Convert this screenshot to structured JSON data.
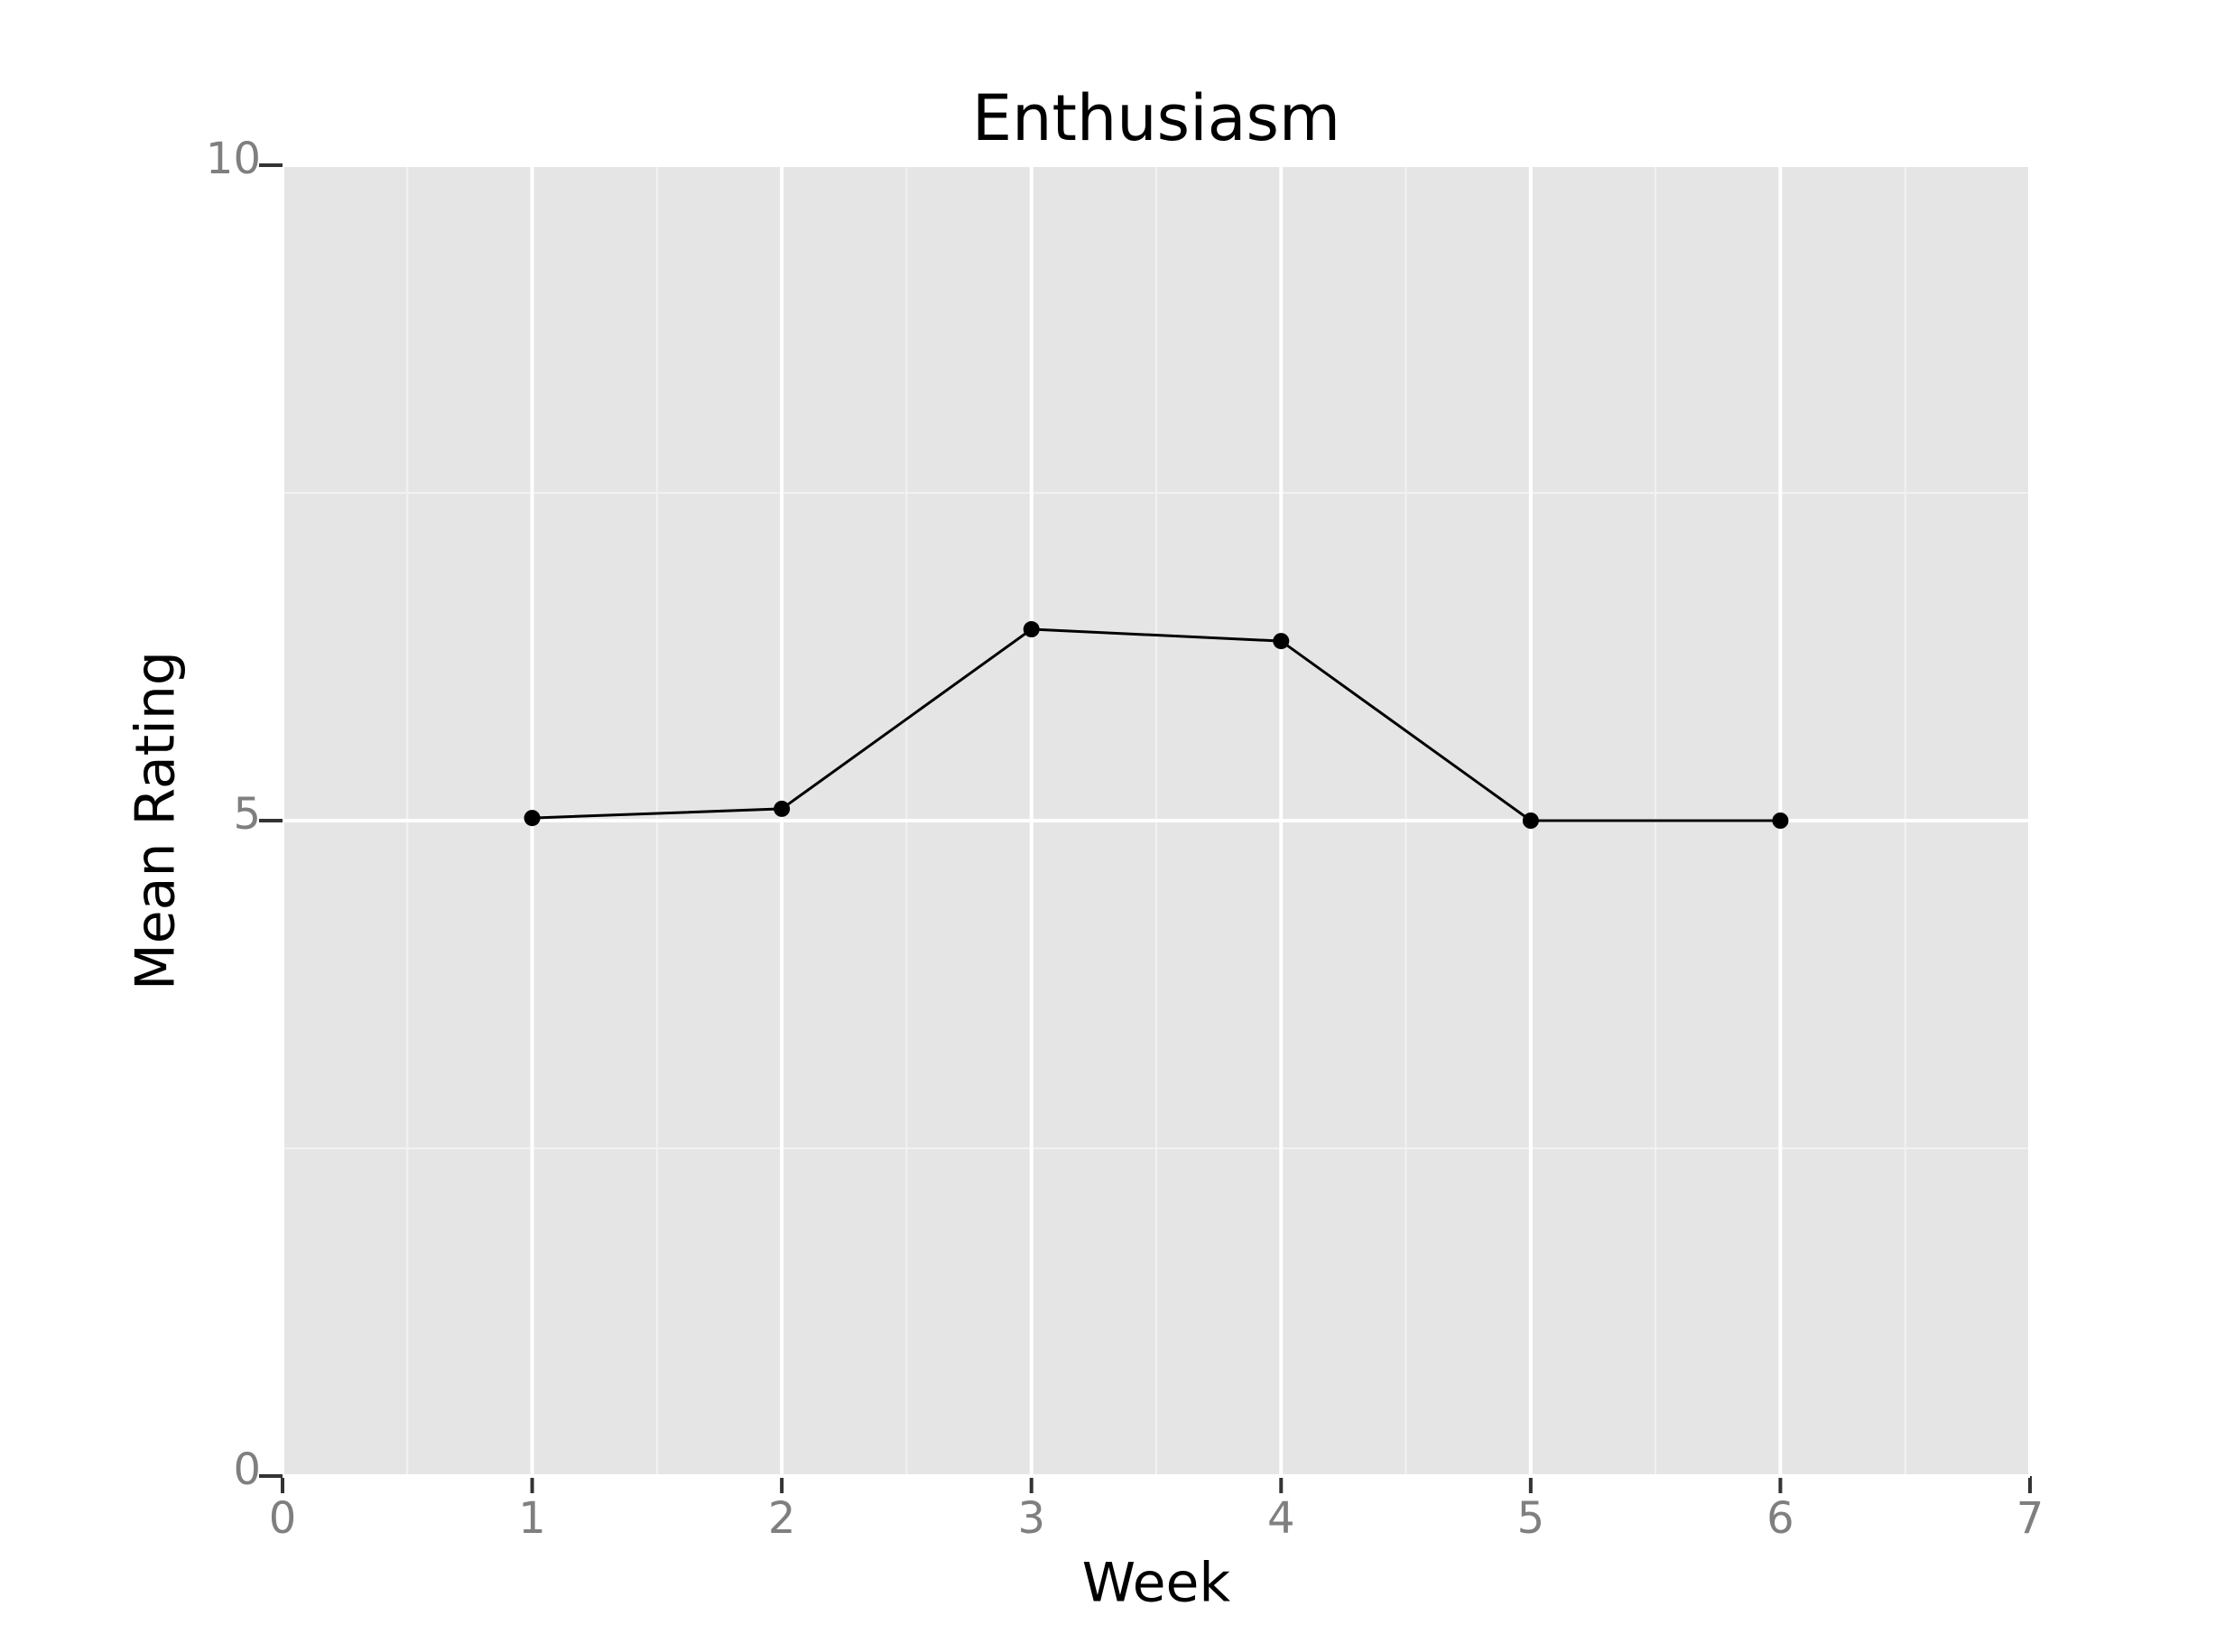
{
  "chart_data": {
    "type": "line",
    "title": "Enthusiasm",
    "x_label": "Week",
    "y_label": "Mean Rating",
    "x": [
      1,
      2,
      3,
      4,
      5,
      6
    ],
    "values": [
      5.02,
      5.09,
      6.46,
      6.37,
      5.0,
      5.0
    ],
    "color": "#000000",
    "xlim": [
      0,
      7
    ],
    "xticks": [
      0,
      1,
      2,
      3,
      4,
      5,
      6,
      7
    ],
    "ylim": [
      0,
      10
    ],
    "yticks": [
      0,
      5,
      10
    ],
    "grid": true
  }
}
